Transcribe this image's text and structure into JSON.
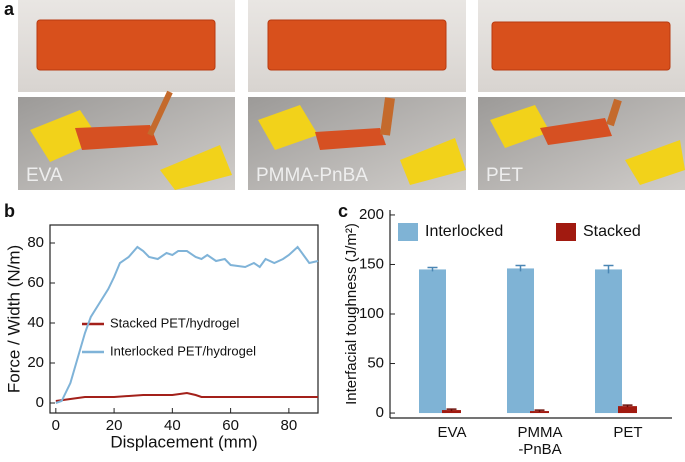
{
  "panel_labels": [
    "a",
    "b",
    "c"
  ],
  "photos": {
    "labels": [
      "EVA",
      "PMMA-PnBA",
      "PET"
    ]
  },
  "chart_data": [
    {
      "type": "line",
      "xlabel": "Displacement (mm)",
      "ylabel": "Force / Width (N/m)",
      "xlim": [
        -2,
        90
      ],
      "xticks": [
        0,
        20,
        40,
        60,
        80
      ],
      "ylim": [
        -5,
        89
      ],
      "yticks": [
        0,
        20,
        40,
        60,
        80
      ],
      "legend": "center",
      "series": [
        {
          "name": "Stacked PET/hydrogel",
          "color": "#a3201a",
          "x": [
            0,
            5,
            10,
            20,
            30,
            40,
            45,
            48,
            50,
            60,
            70,
            80,
            90
          ],
          "values": [
            1,
            2,
            3,
            3,
            4,
            4,
            5,
            4,
            3,
            3,
            3,
            3,
            3
          ]
        },
        {
          "name": "Interlocked PET/hydrogel",
          "color": "#7fb3d8",
          "x": [
            0,
            2,
            5,
            8,
            10,
            12,
            15,
            18,
            20,
            22,
            25,
            28,
            30,
            32,
            35,
            38,
            40,
            42,
            45,
            48,
            50,
            52,
            55,
            58,
            60,
            65,
            68,
            70,
            72,
            75,
            78,
            80,
            83,
            85,
            87,
            90
          ],
          "values": [
            0,
            1,
            10,
            25,
            35,
            43,
            50,
            57,
            63,
            70,
            73,
            78,
            76,
            73,
            72,
            75,
            74,
            76,
            76,
            73,
            72,
            74,
            71,
            72,
            69,
            68,
            70,
            68,
            72,
            70,
            72,
            74,
            78,
            74,
            70,
            71
          ]
        }
      ]
    },
    {
      "type": "bar",
      "ylabel": "Interfacial toughness (J/m²)",
      "categories": [
        "EVA",
        "PMMA\n-PnBA",
        "PET"
      ],
      "ylim": [
        -5,
        205
      ],
      "yticks": [
        0,
        50,
        100,
        150,
        200
      ],
      "legend": "top",
      "series": [
        {
          "name": "Interlocked",
          "color": "#7fb3d5",
          "values": [
            145,
            146,
            145
          ],
          "errors": [
            2,
            3,
            4
          ]
        },
        {
          "name": "Stacked",
          "color": "#a11a10",
          "values": [
            3,
            2,
            7
          ],
          "errors": [
            1,
            1,
            1
          ]
        }
      ]
    }
  ]
}
